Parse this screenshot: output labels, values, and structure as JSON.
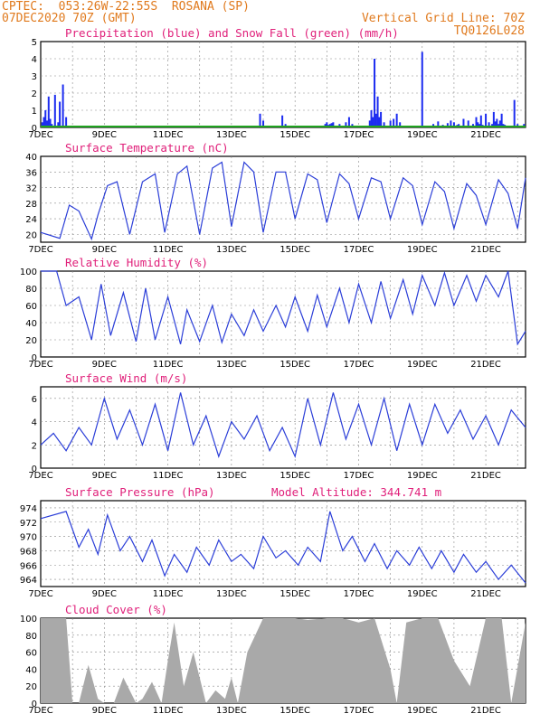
{
  "header": {
    "station_line": "CPTEC:  053:26W-22:55S  ROSANA (SP)",
    "run_line": "07DEC2020 70Z (GMT)",
    "grid_line": "Vertical Grid Line: 70Z",
    "product_code": "TQ0126L028"
  },
  "colors": {
    "header": "#e07a1e",
    "panel_title": "#e0207a",
    "precip": "#1c2cf0",
    "snow": "#1fa31f",
    "line": "#2b3ed8",
    "cloud": "#a9a9a9",
    "grid": "#888888"
  },
  "chart_data": [
    {
      "type": "bar",
      "title": "Precipitation (blue) and Snow Fall (green) (mm/h)",
      "x_tick_labels": [
        "7DEC",
        "9DEC",
        "11DEC",
        "13DEC",
        "15DEC",
        "17DEC",
        "19DEC",
        "21DEC"
      ],
      "ylim": [
        0,
        5
      ],
      "yticks": [
        0,
        1,
        2,
        3,
        4,
        5
      ],
      "grid": true,
      "series": [
        {
          "name": "precipitation",
          "x": [
            0.05,
            0.1,
            0.15,
            0.2,
            0.25,
            0.3,
            0.35,
            0.45,
            0.55,
            0.6,
            0.7,
            0.8,
            1.2,
            6.9,
            7.0,
            7.6,
            7.7,
            8.9,
            8.95,
            9.0,
            9.05,
            9.1,
            9.15,
            9.2,
            9.3,
            9.4,
            9.45,
            9.5,
            9.6,
            9.7,
            9.8,
            10.0,
            10.35,
            10.4,
            10.45,
            10.5,
            10.55,
            10.6,
            10.65,
            10.7,
            10.8,
            11.0,
            11.1,
            11.2,
            11.3,
            12.0,
            12.2,
            12.35,
            12.5,
            12.65,
            12.8,
            12.9,
            13.0,
            13.1,
            13.15,
            13.3,
            13.45,
            13.55,
            13.6,
            13.7,
            13.75,
            13.8,
            13.85,
            13.9,
            14.0,
            14.1,
            14.15,
            14.2,
            14.25,
            14.3,
            14.35,
            14.4,
            14.45,
            14.5,
            14.55,
            14.6,
            14.9,
            15.0,
            15.1,
            15.2
          ],
          "values": [
            0.3,
            0.6,
            1.0,
            0.4,
            1.8,
            0.5,
            0.2,
            1.9,
            0.3,
            1.5,
            2.5,
            0.6,
            0.1,
            0.8,
            0.4,
            0.7,
            0.2,
            0.1,
            0.2,
            0.3,
            0.15,
            0.2,
            0.25,
            0.3,
            0.1,
            0.2,
            0.1,
            0.05,
            0.3,
            0.6,
            0.2,
            0.1,
            0.4,
            1.0,
            0.6,
            4.0,
            0.8,
            1.8,
            0.6,
            0.9,
            0.3,
            0.4,
            0.5,
            0.8,
            0.3,
            4.4,
            0.1,
            0.2,
            0.35,
            0.15,
            0.25,
            0.4,
            0.3,
            0.15,
            0.2,
            0.5,
            0.4,
            0.1,
            0.2,
            0.6,
            0.3,
            0.2,
            0.7,
            0.15,
            0.8,
            0.3,
            0.1,
            0.2,
            0.9,
            0.35,
            0.5,
            0.2,
            0.4,
            0.8,
            0.2,
            0.15,
            1.6,
            0.2,
            0.1,
            0.2
          ]
        },
        {
          "name": "snow",
          "x": [
            0,
            15.25
          ],
          "values": [
            0,
            0
          ]
        }
      ]
    },
    {
      "type": "line",
      "title": "Surface Temperature (nC)",
      "x_tick_labels": [
        "7DEC",
        "9DEC",
        "11DEC",
        "13DEC",
        "15DEC",
        "17DEC",
        "19DEC",
        "21DEC"
      ],
      "ylim": [
        18,
        40
      ],
      "yticks": [
        20,
        24,
        28,
        32,
        36,
        40
      ],
      "grid": true,
      "series": [
        {
          "name": "temperature",
          "x": [
            0,
            0.6,
            0.9,
            1.2,
            1.6,
            1.8,
            2.1,
            2.4,
            2.8,
            3.2,
            3.6,
            3.9,
            4.3,
            4.6,
            5.0,
            5.4,
            5.7,
            6.0,
            6.4,
            6.7,
            7.0,
            7.4,
            7.7,
            8.0,
            8.4,
            8.7,
            9.0,
            9.4,
            9.7,
            10.0,
            10.4,
            10.7,
            11.0,
            11.4,
            11.7,
            12.0,
            12.4,
            12.7,
            13.0,
            13.4,
            13.7,
            14.0,
            14.4,
            14.7,
            15.0,
            15.25
          ],
          "values": [
            20.5,
            19.0,
            27.5,
            26.0,
            18.8,
            25.0,
            32.5,
            33.5,
            20.0,
            33.5,
            35.5,
            20.5,
            35.5,
            37.5,
            20.0,
            37.0,
            38.5,
            22.0,
            38.5,
            36.0,
            20.5,
            36.0,
            36.0,
            24.0,
            35.5,
            34.0,
            23.0,
            35.5,
            33.0,
            24.0,
            34.5,
            33.5,
            24.0,
            34.5,
            32.5,
            22.5,
            33.5,
            31.0,
            21.5,
            33.0,
            30.0,
            22.5,
            34.0,
            30.5,
            21.5,
            34.5
          ]
        }
      ]
    },
    {
      "type": "line",
      "title": "Relative Humidity (%)",
      "x_tick_labels": [
        "7DEC",
        "9DEC",
        "11DEC",
        "13DEC",
        "15DEC",
        "17DEC",
        "19DEC",
        "21DEC"
      ],
      "ylim": [
        0,
        100
      ],
      "yticks": [
        0,
        20,
        40,
        60,
        80,
        100
      ],
      "grid": true,
      "series": [
        {
          "name": "humidity",
          "x": [
            0,
            0.5,
            0.8,
            1.2,
            1.6,
            1.9,
            2.2,
            2.6,
            3.0,
            3.3,
            3.6,
            4.0,
            4.4,
            4.6,
            5.0,
            5.4,
            5.7,
            6.0,
            6.4,
            6.7,
            7.0,
            7.4,
            7.7,
            8.0,
            8.4,
            8.7,
            9.0,
            9.4,
            9.7,
            10.0,
            10.4,
            10.7,
            11.0,
            11.4,
            11.7,
            12.0,
            12.4,
            12.7,
            13.0,
            13.4,
            13.7,
            14.0,
            14.4,
            14.7,
            15.0,
            15.25
          ],
          "values": [
            100,
            100,
            60,
            70,
            20,
            85,
            25,
            75,
            18,
            80,
            20,
            70,
            15,
            55,
            18,
            60,
            17,
            50,
            25,
            55,
            30,
            60,
            35,
            70,
            30,
            72,
            35,
            80,
            40,
            85,
            40,
            88,
            45,
            90,
            50,
            95,
            60,
            98,
            60,
            95,
            65,
            95,
            70,
            100,
            15,
            30
          ]
        }
      ]
    },
    {
      "type": "line",
      "title": "Surface Wind (m/s)",
      "x_tick_labels": [
        "7DEC",
        "9DEC",
        "11DEC",
        "13DEC",
        "15DEC",
        "17DEC",
        "19DEC",
        "21DEC"
      ],
      "ylim": [
        0,
        7
      ],
      "yticks": [
        0,
        2,
        4,
        6
      ],
      "grid": true,
      "series": [
        {
          "name": "wind_speed",
          "x": [
            0,
            0.4,
            0.8,
            1.2,
            1.6,
            2.0,
            2.4,
            2.8,
            3.2,
            3.6,
            4.0,
            4.4,
            4.8,
            5.2,
            5.6,
            6.0,
            6.4,
            6.8,
            7.2,
            7.6,
            8.0,
            8.4,
            8.8,
            9.2,
            9.6,
            10.0,
            10.4,
            10.8,
            11.2,
            11.6,
            12.0,
            12.4,
            12.8,
            13.2,
            13.6,
            14.0,
            14.4,
            14.8,
            15.25
          ],
          "values": [
            2.0,
            3.0,
            1.5,
            3.5,
            2.0,
            6.0,
            2.5,
            5.0,
            2.0,
            5.5,
            1.5,
            6.5,
            2.0,
            4.5,
            1.0,
            4.0,
            2.5,
            4.5,
            1.5,
            3.5,
            1.0,
            6.0,
            2.0,
            6.5,
            2.5,
            5.5,
            2.0,
            6.0,
            1.5,
            5.5,
            2.0,
            5.5,
            3.0,
            5.0,
            2.5,
            4.5,
            2.0,
            5.0,
            3.5
          ]
        }
      ]
    },
    {
      "type": "line",
      "title": "Surface Pressure (hPa)",
      "annotation": "Model Altitude: 344.741 m",
      "x_tick_labels": [
        "7DEC",
        "9DEC",
        "11DEC",
        "13DEC",
        "15DEC",
        "17DEC",
        "19DEC",
        "21DEC"
      ],
      "ylim": [
        963,
        975
      ],
      "yticks": [
        964,
        966,
        968,
        970,
        972,
        974
      ],
      "grid": true,
      "series": [
        {
          "name": "pressure",
          "x": [
            0,
            0.8,
            1.2,
            1.5,
            1.8,
            2.1,
            2.5,
            2.8,
            3.2,
            3.5,
            3.9,
            4.2,
            4.6,
            4.9,
            5.3,
            5.6,
            6.0,
            6.3,
            6.7,
            7.0,
            7.4,
            7.7,
            8.1,
            8.4,
            8.8,
            9.1,
            9.5,
            9.8,
            10.2,
            10.5,
            10.9,
            11.2,
            11.6,
            11.9,
            12.3,
            12.6,
            13.0,
            13.3,
            13.7,
            14.0,
            14.4,
            14.8,
            15.25
          ],
          "values": [
            972.5,
            973.5,
            968.5,
            971.0,
            967.5,
            973.0,
            968.0,
            970.0,
            966.5,
            969.5,
            964.5,
            967.5,
            965.0,
            968.5,
            966.0,
            969.5,
            966.5,
            967.5,
            965.5,
            970.0,
            967.0,
            968.0,
            966.0,
            968.5,
            966.5,
            973.5,
            968.0,
            970.0,
            966.5,
            969.0,
            965.5,
            968.0,
            966.0,
            968.5,
            965.5,
            968.0,
            965.0,
            967.5,
            965.0,
            966.5,
            964.0,
            966.0,
            963.5
          ]
        }
      ]
    },
    {
      "type": "area",
      "title": "Cloud Cover (%)",
      "x_tick_labels": [
        "7DEC",
        "9DEC",
        "11DEC",
        "13DEC",
        "15DEC",
        "17DEC",
        "19DEC",
        "21DEC"
      ],
      "ylim": [
        0,
        100
      ],
      "yticks": [
        0,
        20,
        40,
        60,
        80,
        100
      ],
      "grid": true,
      "series": [
        {
          "name": "cloud_cover",
          "x": [
            0,
            0.5,
            0.8,
            1.0,
            1.2,
            1.5,
            1.8,
            2.0,
            2.3,
            2.6,
            3.0,
            3.2,
            3.5,
            3.8,
            4.0,
            4.2,
            4.5,
            4.8,
            5.0,
            5.2,
            5.5,
            5.8,
            6.0,
            6.2,
            6.5,
            7.0,
            8.0,
            8.4,
            9.0,
            9.5,
            10.0,
            10.5,
            11.0,
            11.2,
            11.5,
            12.0,
            12.5,
            13.0,
            13.5,
            14.0,
            14.5,
            14.8,
            15.25
          ],
          "values": [
            100,
            100,
            100,
            0,
            0,
            45,
            5,
            0,
            0,
            30,
            0,
            5,
            25,
            0,
            50,
            95,
            20,
            60,
            30,
            0,
            15,
            5,
            30,
            0,
            60,
            100,
            100,
            98,
            100,
            100,
            95,
            100,
            40,
            0,
            95,
            100,
            100,
            50,
            20,
            100,
            100,
            0,
            95
          ]
        }
      ]
    }
  ]
}
